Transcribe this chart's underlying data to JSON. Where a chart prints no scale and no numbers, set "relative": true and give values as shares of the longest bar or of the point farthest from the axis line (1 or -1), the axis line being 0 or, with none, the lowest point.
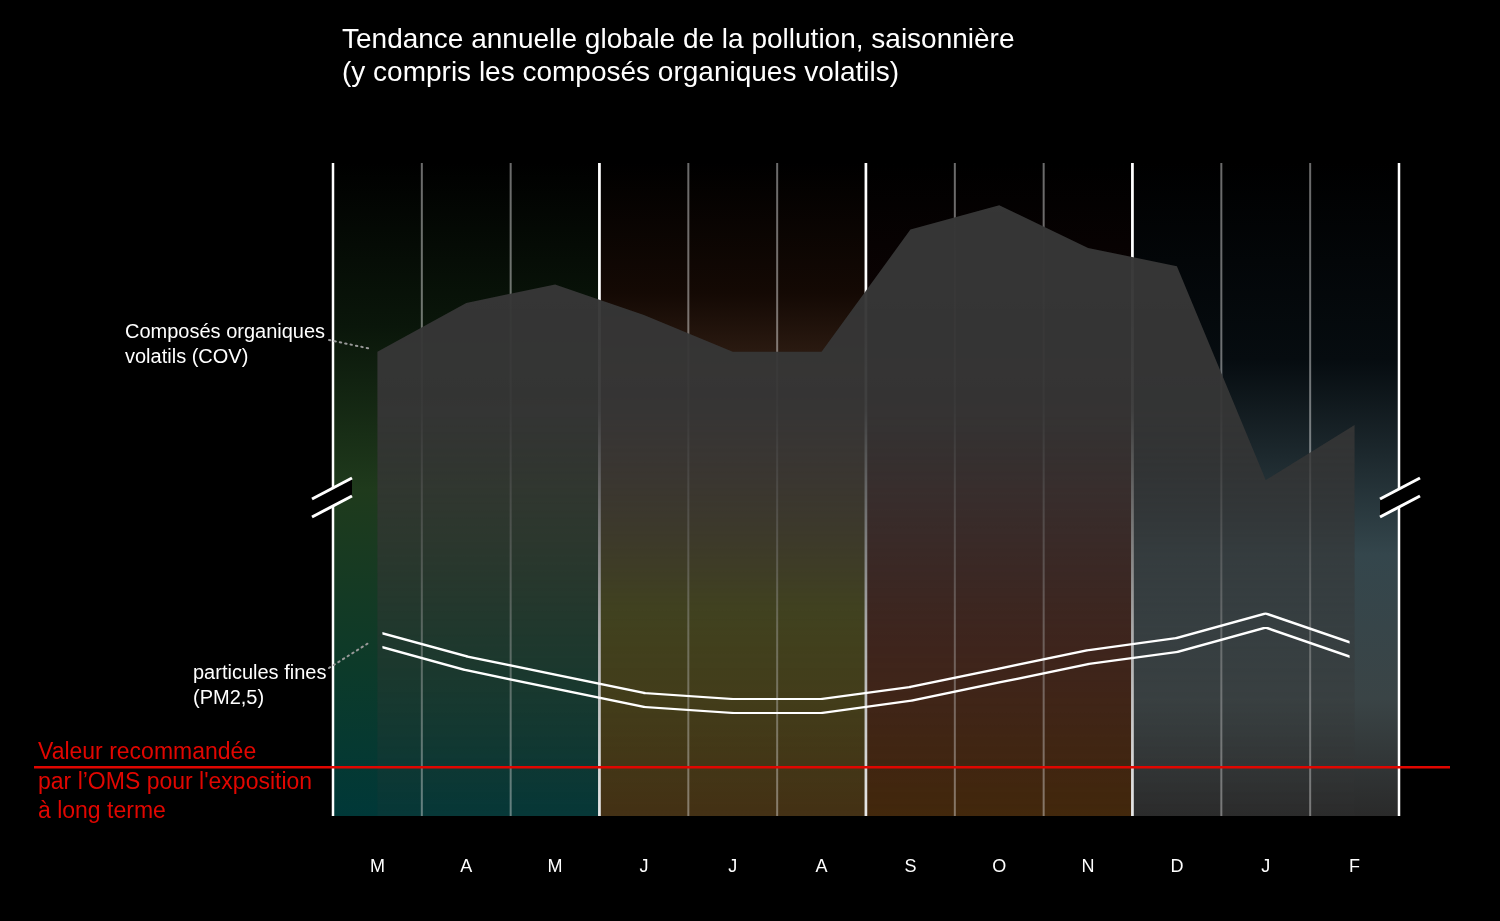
{
  "chart_data": {
    "type": "area",
    "title": "Tendance annuelle globale de la pollution, saisonnière (y compris les composés organiques volatils)",
    "relative": true,
    "marker": "none",
    "grid": "x",
    "categories": [
      "M",
      "A",
      "M",
      "J",
      "J",
      "A",
      "S",
      "O",
      "N",
      "D",
      "J",
      "F"
    ],
    "series": [
      {
        "name": "Composés organiques volatils (COV)",
        "color": "#363636",
        "values": [
          0.76,
          0.84,
          0.87,
          0.82,
          0.76,
          0.76,
          0.96,
          1,
          0.93,
          0.9,
          0.55,
          0.64
        ]
      },
      {
        "name": "particules fines (PM2,5)",
        "type": "line",
        "color": "#ffffff",
        "values": [
          0.29,
          0.25,
          0.22,
          0.19,
          0.18,
          0.18,
          0.2,
          0.23,
          0.26,
          0.28,
          0.32,
          0.27
        ]
      }
    ],
    "ref_lines": [
      {
        "axis": "y",
        "value": 0.08,
        "label": "Valeur recommandée\npar l’OMS pour l'exposition\nà long terme",
        "color": "#e10600"
      }
    ]
  }
}
